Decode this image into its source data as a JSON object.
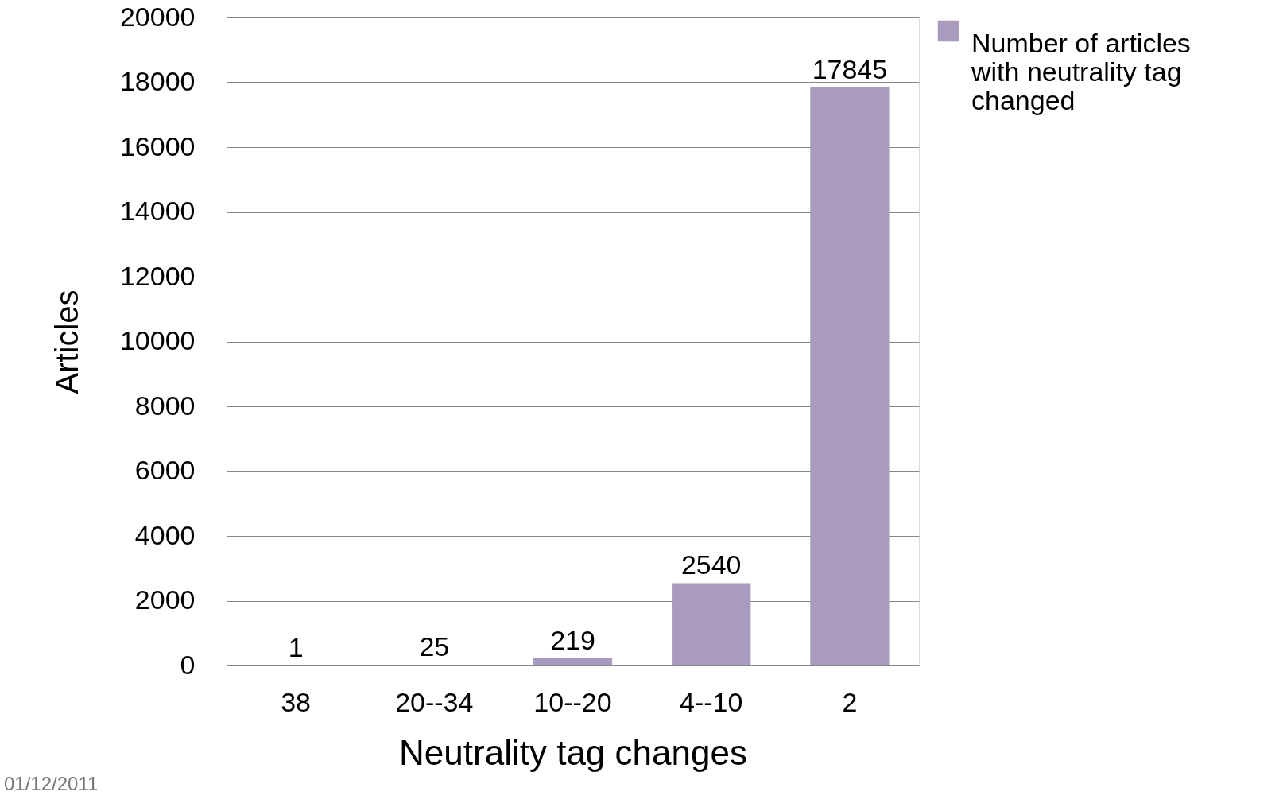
{
  "chart_data": {
    "type": "bar",
    "xlabel": "Neutrality tag changes",
    "ylabel": "Articles",
    "categories": [
      "38",
      "20--34",
      "10--20",
      "4--10",
      "2"
    ],
    "series": [
      {
        "name": "Number of articles with neutrality tag changed",
        "color": "#a99bbd",
        "values": [
          1,
          25,
          219,
          2540,
          17845
        ]
      }
    ],
    "ylim": [
      0,
      20000
    ],
    "yticks": [
      0,
      2000,
      4000,
      6000,
      8000,
      10000,
      12000,
      14000,
      16000,
      18000,
      20000
    ],
    "grid": "y",
    "legend": "right",
    "data_labels": true,
    "annotations": [
      "01/12/2011"
    ]
  }
}
